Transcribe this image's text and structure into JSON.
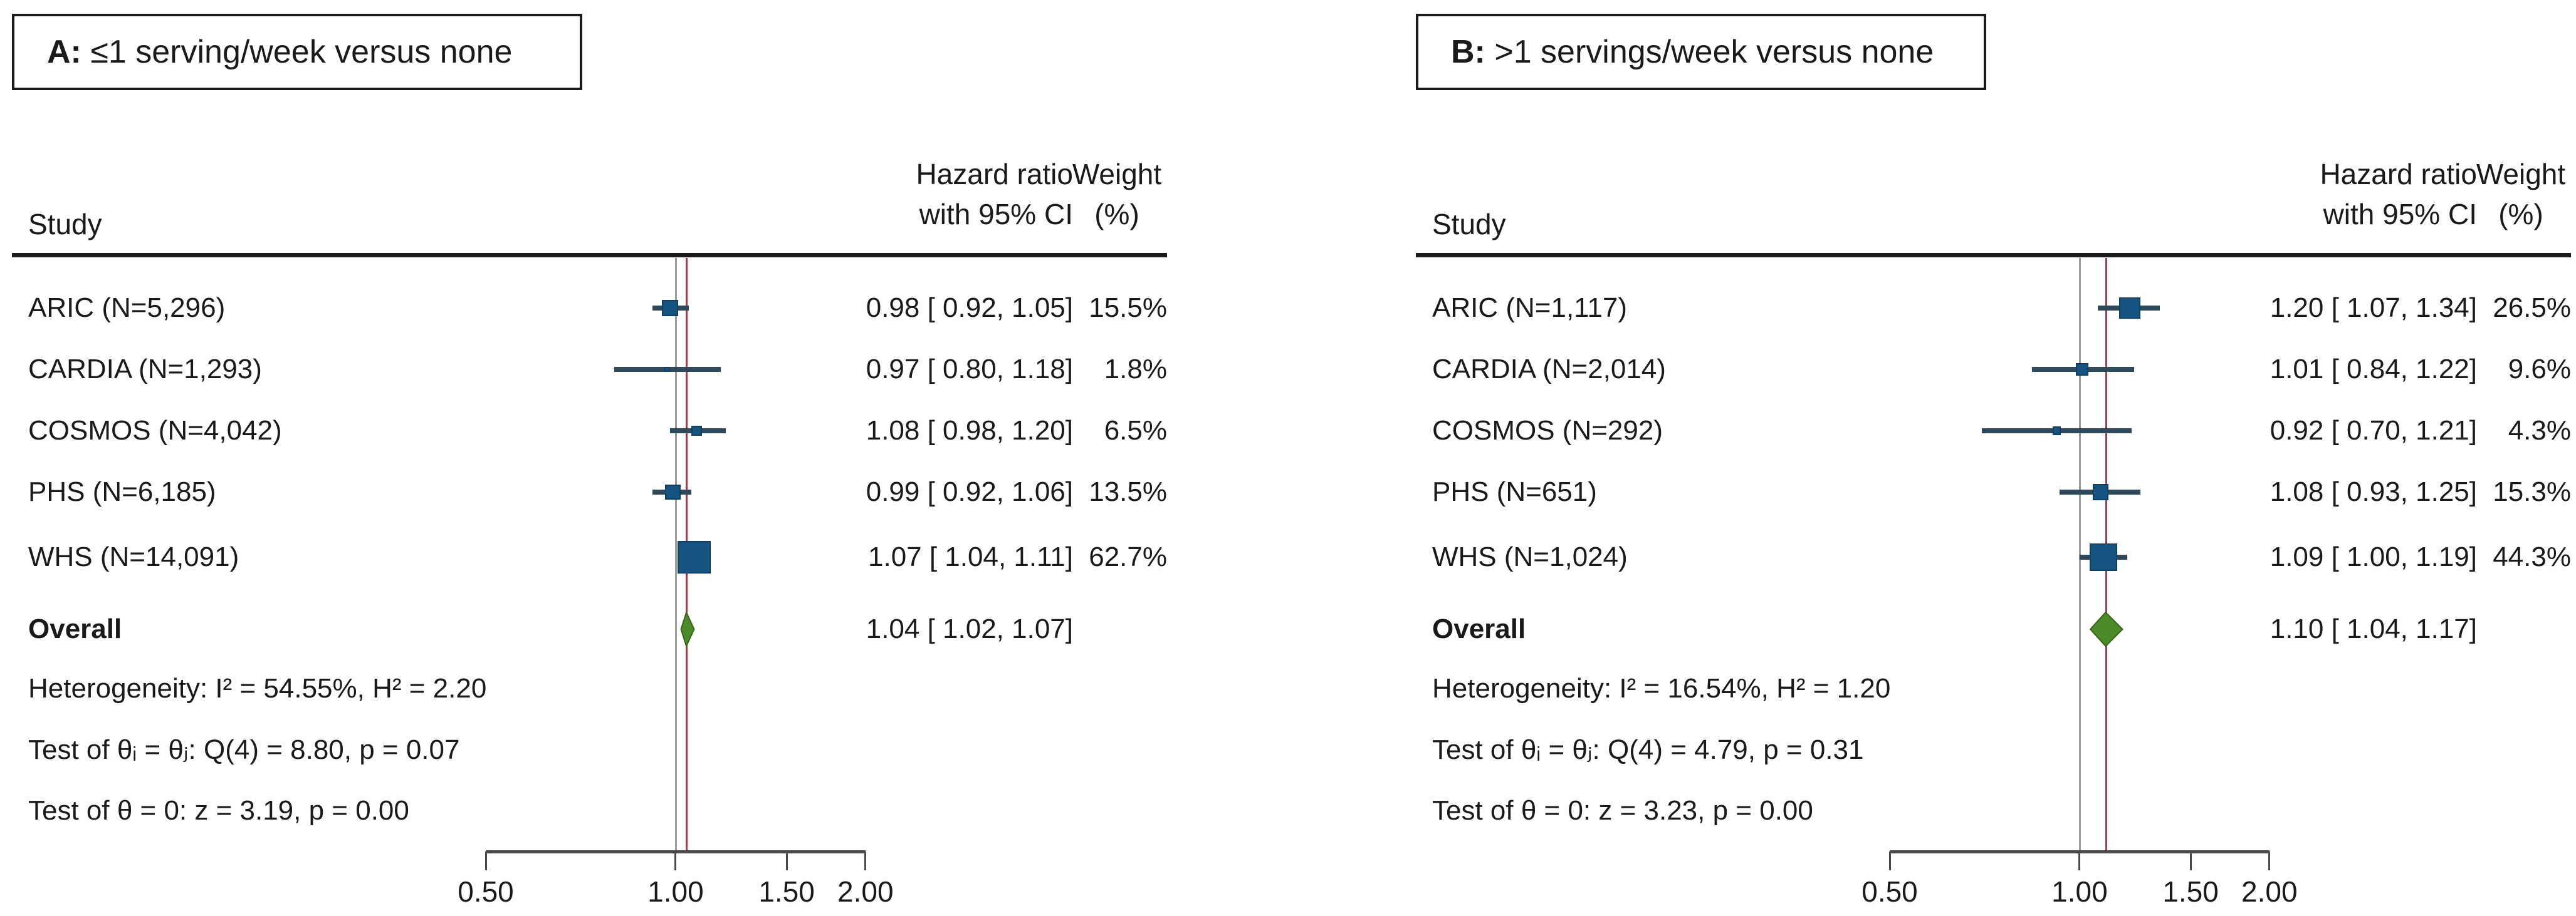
{
  "figure": {
    "description_header": {
      "study": "Study",
      "hr_line1": "Hazard ratio",
      "hr_line2": "with 95% CI",
      "weight_line1": "Weight",
      "weight_line2": "(%)"
    }
  },
  "colors": {
    "text": "#1a1a1a",
    "square_fill": "#155380",
    "square_border": "#0f3f63",
    "ci_whisker": "#2e4a5a",
    "reference_line": "#9b9b9b",
    "overall_estimate_line": "#9b3e50",
    "diamond_fill": "#4b8b29",
    "diamond_border": "#376618",
    "axis": "#4a4a4a",
    "rule": "#1a1a1a"
  },
  "axis": {
    "scale": "log",
    "tick_labels": [
      "0.50",
      "1.00",
      "1.50",
      "2.00"
    ],
    "tick_values": [
      0.5,
      1.0,
      1.5,
      2.0
    ],
    "min": 0.5,
    "max": 2.0
  },
  "panels": [
    {
      "title_prefix": "A:",
      "title_rest": " ≤1 serving/week versus none",
      "header": {
        "study": "Study",
        "hr_line1": "Hazard ratio",
        "hr_line2": "with 95% CI",
        "weight_line1": "Weight",
        "weight_line2": "(%)"
      },
      "studies": [
        {
          "label": "ARIC (N=5,296)",
          "hr": 0.98,
          "lo": 0.92,
          "hi": 1.05,
          "hr_text": "0.98 [ 0.92, 1.05]",
          "weight": 15.5,
          "weight_text": "15.5%"
        },
        {
          "label": "CARDIA (N=1,293)",
          "hr": 0.97,
          "lo": 0.8,
          "hi": 1.18,
          "hr_text": "0.97 [ 0.80, 1.18]",
          "weight": 1.8,
          "weight_text": "1.8%"
        },
        {
          "label": "COSMOS (N=4,042)",
          "hr": 1.08,
          "lo": 0.98,
          "hi": 1.2,
          "hr_text": "1.08 [ 0.98, 1.20]",
          "weight": 6.5,
          "weight_text": "6.5%"
        },
        {
          "label": "PHS (N=6,185)",
          "hr": 0.99,
          "lo": 0.92,
          "hi": 1.06,
          "hr_text": "0.99 [ 0.92, 1.06]",
          "weight": 13.5,
          "weight_text": "13.5%"
        },
        {
          "label": "WHS (N=14,091)",
          "hr": 1.07,
          "lo": 1.04,
          "hi": 1.11,
          "hr_text": "1.07 [ 1.04, 1.11]",
          "weight": 62.7,
          "weight_text": "62.7%"
        }
      ],
      "overall": {
        "label": "Overall",
        "hr": 1.04,
        "lo": 1.02,
        "hi": 1.07,
        "hr_text": "1.04 [ 1.02, 1.07]"
      },
      "footnotes": [
        "Heterogeneity: I² = 54.55%, H² = 2.20",
        "Test of θᵢ = θⱼ: Q(4) = 8.80, p = 0.07",
        "Test of θ = 0: z = 3.19, p = 0.00"
      ]
    },
    {
      "title_prefix": "B:",
      "title_rest": " >1 servings/week versus none",
      "header": {
        "study": "Study",
        "hr_line1": "Hazard ratio",
        "hr_line2": "with 95% CI",
        "weight_line1": "Weight",
        "weight_line2": "(%)"
      },
      "studies": [
        {
          "label": "ARIC (N=1,117)",
          "hr": 1.2,
          "lo": 1.07,
          "hi": 1.34,
          "hr_text": "1.20 [ 1.07, 1.34]",
          "weight": 26.5,
          "weight_text": "26.5%"
        },
        {
          "label": "CARDIA (N=2,014)",
          "hr": 1.01,
          "lo": 0.84,
          "hi": 1.22,
          "hr_text": "1.01 [ 0.84, 1.22]",
          "weight": 9.6,
          "weight_text": "9.6%"
        },
        {
          "label": "COSMOS (N=292)",
          "hr": 0.92,
          "lo": 0.7,
          "hi": 1.21,
          "hr_text": "0.92 [ 0.70, 1.21]",
          "weight": 4.3,
          "weight_text": "4.3%"
        },
        {
          "label": "PHS (N=651)",
          "hr": 1.08,
          "lo": 0.93,
          "hi": 1.25,
          "hr_text": "1.08 [ 0.93, 1.25]",
          "weight": 15.3,
          "weight_text": "15.3%"
        },
        {
          "label": "WHS (N=1,024)",
          "hr": 1.09,
          "lo": 1.0,
          "hi": 1.19,
          "hr_text": "1.09 [ 1.00, 1.19]",
          "weight": 44.3,
          "weight_text": "44.3%"
        }
      ],
      "overall": {
        "label": "Overall",
        "hr": 1.1,
        "lo": 1.04,
        "hi": 1.17,
        "hr_text": "1.10 [ 1.04, 1.17]"
      },
      "footnotes": [
        "Heterogeneity: I² = 16.54%, H² = 1.20",
        "Test of θᵢ = θⱼ: Q(4) = 4.79, p = 0.31",
        "Test of θ = 0: z = 3.23, p = 0.00"
      ]
    }
  ],
  "chart_data": [
    {
      "type": "forest",
      "title": "A: ≤1 serving/week versus none",
      "effect_measure": "Hazard ratio with 95% CI",
      "xscale": "log",
      "xticks": [
        0.5,
        1.0,
        1.5,
        2.0
      ],
      "xlim": [
        0.5,
        2.0
      ],
      "reference_value": 1.0,
      "studies": [
        {
          "study": "ARIC (N=5,296)",
          "hr": 0.98,
          "ci_low": 0.92,
          "ci_high": 1.05,
          "weight_pct": 15.5
        },
        {
          "study": "CARDIA (N=1,293)",
          "hr": 0.97,
          "ci_low": 0.8,
          "ci_high": 1.18,
          "weight_pct": 1.8
        },
        {
          "study": "COSMOS (N=4,042)",
          "hr": 1.08,
          "ci_low": 0.98,
          "ci_high": 1.2,
          "weight_pct": 6.5
        },
        {
          "study": "PHS (N=6,185)",
          "hr": 0.99,
          "ci_low": 0.92,
          "ci_high": 1.06,
          "weight_pct": 13.5
        },
        {
          "study": "WHS (N=14,091)",
          "hr": 1.07,
          "ci_low": 1.04,
          "ci_high": 1.11,
          "weight_pct": 62.7
        }
      ],
      "overall": {
        "hr": 1.04,
        "ci_low": 1.02,
        "ci_high": 1.07
      },
      "heterogeneity": {
        "I2_pct": 54.55,
        "H2": 2.2,
        "Q_df": 4,
        "Q": 8.8,
        "Q_p": 0.07,
        "z": 3.19,
        "z_p": 0.0
      }
    },
    {
      "type": "forest",
      "title": "B: >1 servings/week versus none",
      "effect_measure": "Hazard ratio with 95% CI",
      "xscale": "log",
      "xticks": [
        0.5,
        1.0,
        1.5,
        2.0
      ],
      "xlim": [
        0.5,
        2.0
      ],
      "reference_value": 1.0,
      "studies": [
        {
          "study": "ARIC (N=1,117)",
          "hr": 1.2,
          "ci_low": 1.07,
          "ci_high": 1.34,
          "weight_pct": 26.5
        },
        {
          "study": "CARDIA (N=2,014)",
          "hr": 1.01,
          "ci_low": 0.84,
          "ci_high": 1.22,
          "weight_pct": 9.6
        },
        {
          "study": "COSMOS (N=292)",
          "hr": 0.92,
          "ci_low": 0.7,
          "ci_high": 1.21,
          "weight_pct": 4.3
        },
        {
          "study": "PHS (N=651)",
          "hr": 1.08,
          "ci_low": 0.93,
          "ci_high": 1.25,
          "weight_pct": 15.3
        },
        {
          "study": "WHS (N=1,024)",
          "hr": 1.09,
          "ci_low": 1.0,
          "ci_high": 1.19,
          "weight_pct": 44.3
        }
      ],
      "overall": {
        "hr": 1.1,
        "ci_low": 1.04,
        "ci_high": 1.17
      },
      "heterogeneity": {
        "I2_pct": 16.54,
        "H2": 1.2,
        "Q_df": 4,
        "Q": 4.79,
        "Q_p": 0.31,
        "z": 3.23,
        "z_p": 0.0
      }
    }
  ]
}
